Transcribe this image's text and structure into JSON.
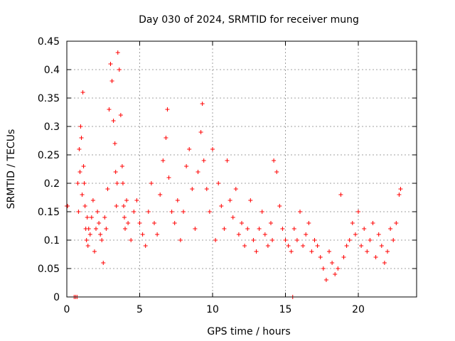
{
  "chart_data": {
    "type": "scatter",
    "title": "Day 030 of 2024, SRMTID for receiver mung",
    "xlabel": "GPS time / hours",
    "ylabel": "SRMTID / TECUs",
    "xlim": [
      0,
      24
    ],
    "ylim": [
      0,
      0.45
    ],
    "x_ticks": [
      0,
      5,
      10,
      15,
      20
    ],
    "x_tick_labels": [
      "0",
      "5",
      "10",
      "15",
      "20"
    ],
    "y_ticks": [
      0,
      0.05,
      0.1,
      0.15,
      0.2,
      0.25,
      0.3,
      0.35,
      0.4,
      0.45
    ],
    "y_tick_labels": [
      "0",
      "0.05",
      "0.1",
      "0.15",
      "0.2",
      "0.25",
      "0.3",
      "0.35",
      "0.4",
      "0.45"
    ],
    "grid": true,
    "marker": "+",
    "marker_color": "#ff0000",
    "series": [
      {
        "name": "SRMTID",
        "x": [
          0.0,
          0.05,
          0.5,
          0.6,
          0.7,
          0.75,
          0.8,
          0.85,
          0.9,
          0.95,
          1.0,
          1.05,
          1.1,
          1.15,
          1.2,
          1.25,
          1.3,
          1.35,
          1.4,
          1.45,
          1.5,
          1.6,
          1.7,
          1.8,
          1.9,
          2.0,
          2.1,
          2.2,
          2.3,
          2.4,
          2.5,
          2.6,
          2.7,
          2.8,
          2.9,
          3.0,
          3.1,
          3.2,
          3.3,
          3.35,
          3.4,
          3.45,
          3.5,
          3.6,
          3.7,
          3.8,
          3.85,
          3.9,
          3.95,
          4.0,
          4.1,
          4.2,
          4.4,
          4.6,
          4.8,
          5.0,
          5.2,
          5.4,
          5.6,
          5.8,
          6.0,
          6.2,
          6.4,
          6.6,
          6.8,
          6.9,
          7.0,
          7.2,
          7.4,
          7.6,
          7.8,
          8.0,
          8.2,
          8.4,
          8.6,
          8.8,
          9.0,
          9.2,
          9.3,
          9.4,
          9.6,
          9.8,
          10.0,
          10.2,
          10.4,
          10.6,
          10.8,
          11.0,
          11.2,
          11.4,
          11.6,
          11.8,
          12.0,
          12.2,
          12.4,
          12.6,
          12.8,
          13.0,
          13.2,
          13.4,
          13.6,
          13.8,
          14.0,
          14.1,
          14.2,
          14.4,
          14.6,
          14.8,
          15.0,
          15.2,
          15.4,
          15.5,
          15.6,
          15.8,
          16.0,
          16.2,
          16.4,
          16.6,
          16.8,
          17.0,
          17.2,
          17.4,
          17.6,
          17.8,
          18.0,
          18.2,
          18.4,
          18.6,
          18.8,
          19.0,
          19.2,
          19.4,
          19.6,
          19.8,
          20.0,
          20.2,
          20.4,
          20.6,
          20.8,
          21.0,
          21.2,
          21.4,
          21.6,
          21.8,
          22.0,
          22.2,
          22.4,
          22.6,
          22.8,
          22.9
        ],
        "y": [
          0.16,
          0.16,
          0.0,
          0.0,
          0.0,
          0.2,
          0.15,
          0.26,
          0.22,
          0.3,
          0.28,
          0.18,
          0.36,
          0.23,
          0.2,
          0.16,
          0.12,
          0.1,
          0.14,
          0.09,
          0.12,
          0.11,
          0.14,
          0.17,
          0.08,
          0.12,
          0.15,
          0.13,
          0.11,
          0.1,
          0.06,
          0.14,
          0.12,
          0.19,
          0.33,
          0.41,
          0.38,
          0.31,
          0.27,
          0.22,
          0.16,
          0.2,
          0.43,
          0.4,
          0.32,
          0.23,
          0.2,
          0.16,
          0.14,
          0.12,
          0.17,
          0.13,
          0.1,
          0.15,
          0.17,
          0.13,
          0.11,
          0.09,
          0.15,
          0.2,
          0.13,
          0.11,
          0.18,
          0.24,
          0.28,
          0.33,
          0.21,
          0.15,
          0.13,
          0.17,
          0.1,
          0.15,
          0.23,
          0.26,
          0.19,
          0.12,
          0.22,
          0.29,
          0.34,
          0.24,
          0.19,
          0.15,
          0.26,
          0.1,
          0.2,
          0.16,
          0.12,
          0.24,
          0.17,
          0.14,
          0.19,
          0.11,
          0.13,
          0.09,
          0.12,
          0.17,
          0.1,
          0.08,
          0.12,
          0.15,
          0.11,
          0.09,
          0.13,
          0.1,
          0.24,
          0.22,
          0.16,
          0.12,
          0.1,
          0.09,
          0.08,
          0.0,
          0.12,
          0.1,
          0.15,
          0.09,
          0.11,
          0.13,
          0.08,
          0.1,
          0.09,
          0.07,
          0.05,
          0.03,
          0.08,
          0.06,
          0.04,
          0.05,
          0.18,
          0.07,
          0.09,
          0.1,
          0.13,
          0.11,
          0.15,
          0.09,
          0.12,
          0.08,
          0.1,
          0.13,
          0.07,
          0.11,
          0.09,
          0.06,
          0.08,
          0.12,
          0.1,
          0.13,
          0.18,
          0.19
        ]
      }
    ]
  }
}
